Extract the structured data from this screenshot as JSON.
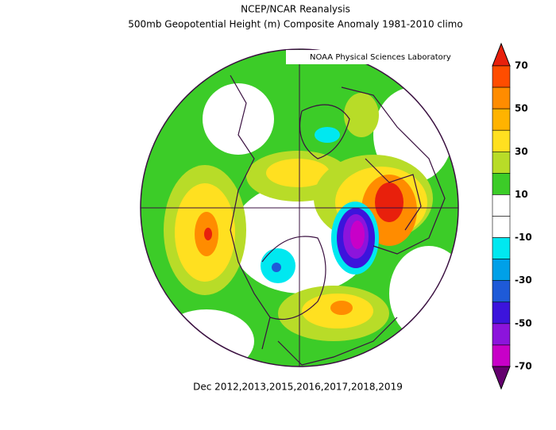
{
  "header": {
    "title": "NCEP/NCAR Reanalysis",
    "subtitle": "500mb Geopotential Height (m) Composite Anomaly 1981-2010 climo",
    "credit": "NOAA Physical Sciences Laboratory"
  },
  "colorbar": {
    "ticks": [
      70,
      50,
      30,
      10,
      -10,
      -30,
      -50,
      -70
    ],
    "colors": [
      "#e8200c",
      "#ff4d00",
      "#ff8c00",
      "#ffb300",
      "#ffe020",
      "#b8dc28",
      "#3ccc28",
      "#ffffff",
      "#ffffff",
      "#00e8f0",
      "#00a0e8",
      "#1e5ad8",
      "#3c14dc",
      "#8c14dc",
      "#c800c8",
      "#64006e"
    ]
  },
  "footer": {
    "caption": "Dec 2012,2013,2015,2016,2017,2018,2019"
  }
}
